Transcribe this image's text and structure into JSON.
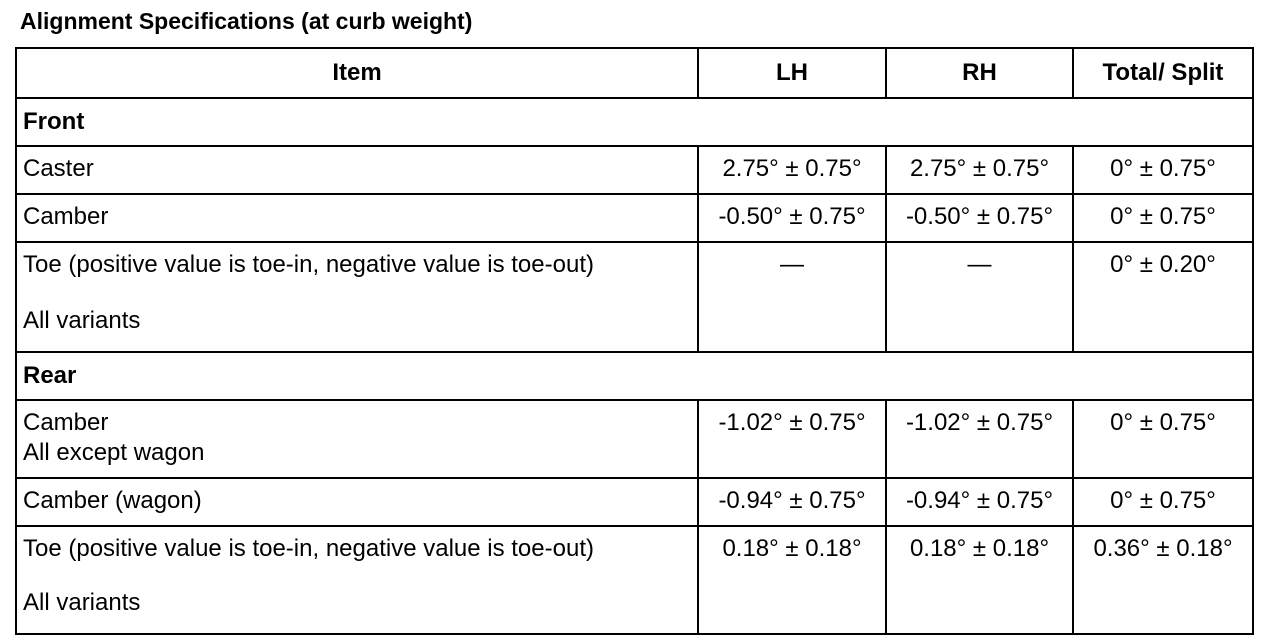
{
  "title": "Alignment Specifications (at curb weight)",
  "table": {
    "header": [
      "Item",
      "LH",
      "RH",
      "Total/ Split"
    ],
    "sections": [
      {
        "name": "Front",
        "rows": [
          {
            "item": [
              "Caster"
            ],
            "lh": "2.75° ± 0.75°",
            "rh": "2.75° ± 0.75°",
            "total": "0° ± 0.75°"
          },
          {
            "item": [
              "Camber"
            ],
            "lh": "-0.50° ± 0.75°",
            "rh": "-0.50° ± 0.75°",
            "total": "0° ± 0.75°"
          },
          {
            "item": [
              "Toe (positive value is toe-in, negative value is toe-out)",
              "All variants"
            ],
            "lh": "—",
            "rh": "—",
            "total": "0° ± 0.20°"
          }
        ]
      },
      {
        "name": "Rear",
        "rows": [
          {
            "item": [
              "Camber",
              "All except wagon"
            ],
            "lh": "-1.02° ± 0.75°",
            "rh": "-1.02° ± 0.75°",
            "total": "0° ± 0.75°"
          },
          {
            "item": [
              "Camber (wagon)"
            ],
            "lh": "-0.94° ± 0.75°",
            "rh": "-0.94° ± 0.75°",
            "total": "0° ± 0.75°"
          },
          {
            "item": [
              "Toe (positive value is toe-in, negative value is toe-out)",
              "All variants"
            ],
            "lh": "0.18° ± 0.18°",
            "rh": "0.18° ± 0.18°",
            "total": "0.36° ± 0.18°"
          }
        ]
      }
    ]
  }
}
